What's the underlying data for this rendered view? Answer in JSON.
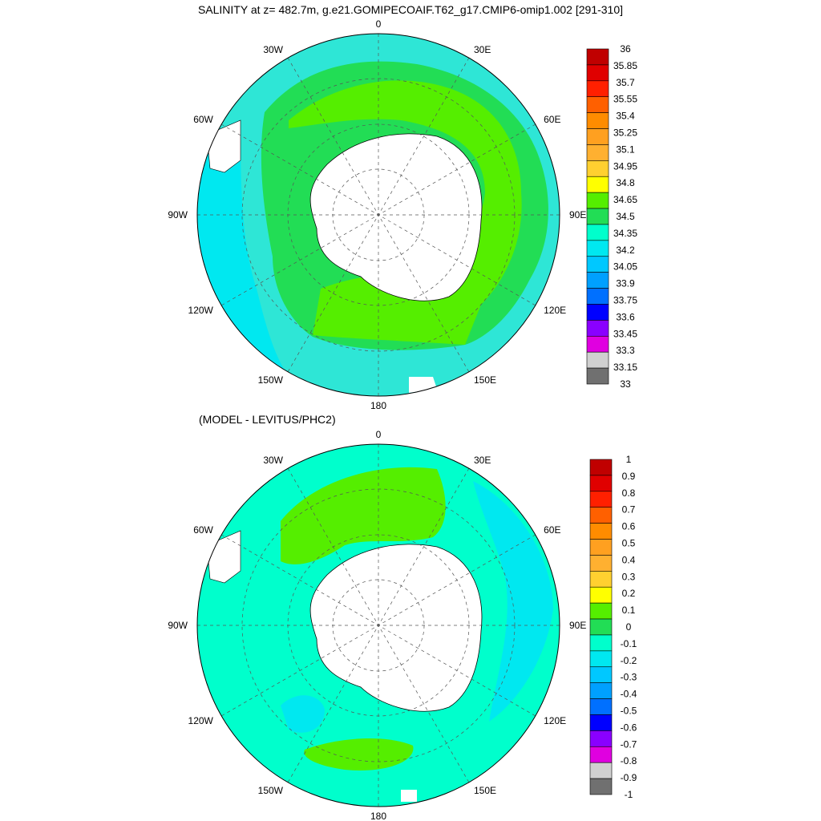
{
  "top_panel": {
    "title": "SALINITY at z= 482.7m, g.e21.GOMIPECOAIF.T62_g17.CMIP6-omip1.002 [291-310]",
    "lon_labels": [
      "0",
      "30E",
      "60E",
      "90E",
      "120E",
      "150E",
      "180",
      "150W",
      "120W",
      "90W",
      "60W",
      "30W"
    ],
    "colorbar": {
      "labels": [
        "36",
        "35.85",
        "35.7",
        "35.55",
        "35.4",
        "35.25",
        "35.1",
        "34.95",
        "34.8",
        "34.65",
        "34.5",
        "34.35",
        "34.2",
        "34.05",
        "33.9",
        "33.75",
        "33.6",
        "33.45",
        "33.3",
        "33.15",
        "33"
      ],
      "colors": [
        "#c00000",
        "#e00000",
        "#ff2000",
        "#ff6000",
        "#ff8c00",
        "#ffa020",
        "#ffb030",
        "#ffd030",
        "#ffff00",
        "#55ee00",
        "#22dd55",
        "#00ffcc",
        "#00e8f0",
        "#00c8ff",
        "#00a0ff",
        "#0070ff",
        "#0000ff",
        "#8a00ff",
        "#e000e0",
        "#d0d0d0",
        "#707070"
      ]
    },
    "fields": {
      "ocean_base": "#2ee6d6",
      "shelf_ring": "#22dd55",
      "inner_ring": "#55ee00",
      "land": "#ffffff"
    }
  },
  "bottom_panel": {
    "title": "(MODEL - LEVITUS/PHC2)",
    "lon_labels": [
      "0",
      "30E",
      "60E",
      "90E",
      "120E",
      "150E",
      "180",
      "150W",
      "120W",
      "90W",
      "60W",
      "30W"
    ],
    "colorbar": {
      "labels": [
        "1",
        "0.9",
        "0.8",
        "0.7",
        "0.6",
        "0.5",
        "0.4",
        "0.3",
        "0.2",
        "0.1",
        "0",
        "-0.1",
        "-0.2",
        "-0.3",
        "-0.4",
        "-0.5",
        "-0.6",
        "-0.7",
        "-0.8",
        "-0.9",
        "-1"
      ],
      "colors": [
        "#c00000",
        "#e00000",
        "#ff2000",
        "#ff6000",
        "#ff8c00",
        "#ffa020",
        "#ffb030",
        "#ffd030",
        "#ffff00",
        "#55ee00",
        "#22dd55",
        "#00ffcc",
        "#00e8f0",
        "#00c8ff",
        "#00a0ff",
        "#0070ff",
        "#0000ff",
        "#8a00ff",
        "#e000e0",
        "#d0d0d0",
        "#707070"
      ]
    },
    "fields": {
      "ocean_base": "#00ffcc",
      "positive": "#55ee00",
      "negative": "#00e8f0",
      "land": "#ffffff"
    }
  }
}
